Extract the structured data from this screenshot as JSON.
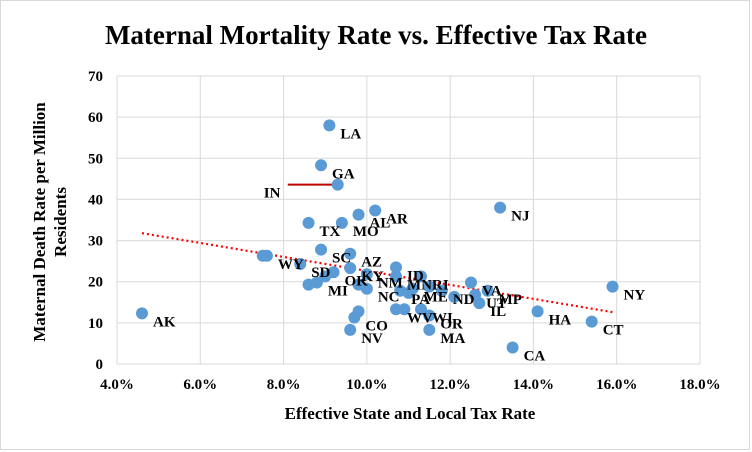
{
  "chart_data": {
    "type": "scatter",
    "title": "Maternal Mortality Rate vs. Effective Tax Rate",
    "xlabel": "Effective State and Local Tax Rate",
    "ylabel_lines": [
      "Maternal Death Rate per Million",
      "Residents"
    ],
    "xlim": [
      0.04,
      0.18
    ],
    "ylim": [
      0,
      70
    ],
    "xticks": [
      0.04,
      0.06,
      0.08,
      0.1,
      0.12,
      0.14,
      0.16,
      0.18
    ],
    "xtick_labels": [
      "4.0%",
      "6.0%",
      "8.0%",
      "10.0%",
      "12.0%",
      "14.0%",
      "16.0%",
      "18.0%"
    ],
    "yticks": [
      0,
      10,
      20,
      30,
      40,
      50,
      60,
      70
    ],
    "ytick_labels": [
      "0",
      "10",
      "20",
      "30",
      "40",
      "50",
      "60",
      "70"
    ],
    "grid": "major gridlines",
    "legend": "none",
    "marker_color": "#5b9bd5",
    "trendline": {
      "type": "linear",
      "style": "dotted",
      "color": "#ff0000",
      "x": [
        0.046,
        0.159
      ],
      "y": [
        31.8,
        12.6
      ]
    },
    "highlight": {
      "label": "IN",
      "color": "#c00000",
      "line_from_x": 0.081
    },
    "points": [
      {
        "label": "AK",
        "x": 0.046,
        "y": 12.3
      },
      {
        "label": "",
        "x": 0.075,
        "y": 26.3
      },
      {
        "label": "WY",
        "x": 0.076,
        "y": 26.3
      },
      {
        "label": "SD",
        "x": 0.084,
        "y": 24.3
      },
      {
        "label": "",
        "x": 0.086,
        "y": 19.3
      },
      {
        "label": "MI",
        "x": 0.088,
        "y": 19.8
      },
      {
        "label": "TX",
        "x": 0.086,
        "y": 34.3
      },
      {
        "label": "GA",
        "x": 0.089,
        "y": 48.3
      },
      {
        "label": "SC",
        "x": 0.089,
        "y": 27.8
      },
      {
        "label": "LA",
        "x": 0.091,
        "y": 58.0
      },
      {
        "label": "IN",
        "x": 0.093,
        "y": 43.6
      },
      {
        "label": "MO",
        "x": 0.094,
        "y": 34.3
      },
      {
        "label": "",
        "x": 0.09,
        "y": 21.3
      },
      {
        "label": "OK",
        "x": 0.092,
        "y": 22.3
      },
      {
        "label": "AZ",
        "x": 0.096,
        "y": 26.8
      },
      {
        "label": "KY",
        "x": 0.096,
        "y": 23.3
      },
      {
        "label": "NM",
        "x": 0.1,
        "y": 21.8
      },
      {
        "label": "",
        "x": 0.098,
        "y": 19.3
      },
      {
        "label": "NV",
        "x": 0.096,
        "y": 8.3
      },
      {
        "label": "CO",
        "x": 0.097,
        "y": 11.3
      },
      {
        "label": "",
        "x": 0.098,
        "y": 12.8
      },
      {
        "label": "AL",
        "x": 0.098,
        "y": 36.3
      },
      {
        "label": "AR",
        "x": 0.102,
        "y": 37.3
      },
      {
        "label": "NC",
        "x": 0.1,
        "y": 18.3
      },
      {
        "label": "WV",
        "x": 0.107,
        "y": 13.3
      },
      {
        "label": "",
        "x": 0.109,
        "y": 13.3
      },
      {
        "label": "ID",
        "x": 0.107,
        "y": 23.5
      },
      {
        "label": "MN",
        "x": 0.107,
        "y": 21.3
      },
      {
        "label": "PA",
        "x": 0.108,
        "y": 17.8
      },
      {
        "label": "",
        "x": 0.11,
        "y": 17.3
      },
      {
        "label": "RI",
        "x": 0.113,
        "y": 21.3
      },
      {
        "label": "ME",
        "x": 0.111,
        "y": 18.3
      },
      {
        "label": "",
        "x": 0.115,
        "y": 18.8
      },
      {
        "label": "WI",
        "x": 0.113,
        "y": 13.3
      },
      {
        "label": "MA",
        "x": 0.115,
        "y": 8.3
      },
      {
        "label": "OR",
        "x": 0.115,
        "y": 11.8
      },
      {
        "label": "ND",
        "x": 0.118,
        "y": 17.8
      },
      {
        "label": "",
        "x": 0.121,
        "y": 16.3
      },
      {
        "label": "VA",
        "x": 0.125,
        "y": 19.8
      },
      {
        "label": "UT",
        "x": 0.126,
        "y": 16.8
      },
      {
        "label": "MP",
        "x": 0.129,
        "y": 17.8
      },
      {
        "label": "IL",
        "x": 0.127,
        "y": 14.8
      },
      {
        "label": "NJ",
        "x": 0.132,
        "y": 38.0
      },
      {
        "label": "CA",
        "x": 0.135,
        "y": 4.0
      },
      {
        "label": "HA",
        "x": 0.141,
        "y": 12.8
      },
      {
        "label": "CT",
        "x": 0.154,
        "y": 10.3
      },
      {
        "label": "NY",
        "x": 0.159,
        "y": 18.8
      }
    ]
  }
}
